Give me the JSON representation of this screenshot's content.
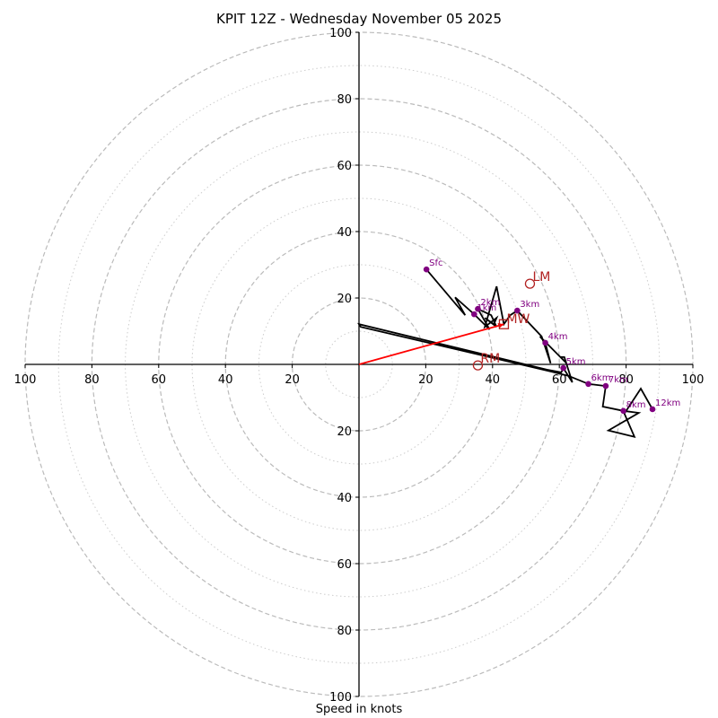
{
  "chart_data": {
    "type": "line",
    "title": "KPIT 12Z - Wednesday November 05 2025",
    "xlabel": "Speed in knots",
    "ylabel": "",
    "units": "knots",
    "xlim": [
      -100,
      100
    ],
    "ylim": [
      -100,
      100
    ],
    "rings": {
      "major": [
        20,
        40,
        60,
        80,
        100
      ],
      "minor": [
        10,
        30,
        50,
        70,
        90
      ],
      "major_style": "dashed",
      "minor_style": "dotted",
      "color": "#bbbbbb"
    },
    "x_ticks": [
      {
        "value": -100,
        "label": "100"
      },
      {
        "value": -80,
        "label": "80"
      },
      {
        "value": -60,
        "label": "60"
      },
      {
        "value": -40,
        "label": "40"
      },
      {
        "value": -20,
        "label": "20"
      },
      {
        "value": 20,
        "label": "20"
      },
      {
        "value": 40,
        "label": "40"
      },
      {
        "value": 60,
        "label": "60"
      },
      {
        "value": 80,
        "label": "80"
      },
      {
        "value": 100,
        "label": "100"
      }
    ],
    "y_ticks": [
      {
        "value": 100,
        "label": "100"
      },
      {
        "value": 80,
        "label": "80"
      },
      {
        "value": 60,
        "label": "60"
      },
      {
        "value": 40,
        "label": "40"
      },
      {
        "value": 20,
        "label": "20"
      },
      {
        "value": -20,
        "label": "20"
      },
      {
        "value": -40,
        "label": "40"
      },
      {
        "value": -60,
        "label": "60"
      },
      {
        "value": -80,
        "label": "80"
      },
      {
        "value": -100,
        "label": "100"
      }
    ],
    "hodograph": {
      "color": "#000000",
      "points": [
        [
          20.2,
          28.6
        ],
        [
          31.8,
          14.8
        ],
        [
          28.8,
          20.2
        ],
        [
          34.5,
          15.1
        ],
        [
          39.1,
          10.5
        ],
        [
          35.6,
          16.7
        ],
        [
          39.6,
          14.8
        ],
        [
          41.2,
          11.3
        ],
        [
          37.7,
          14.0
        ],
        [
          40.4,
          12.1
        ],
        [
          41.2,
          14.0
        ],
        [
          37.7,
          11.3
        ],
        [
          41.2,
          23.5
        ],
        [
          43.4,
          12.1
        ],
        [
          45.3,
          14.8
        ],
        [
          47.4,
          16.2
        ],
        [
          54.7,
          8.4
        ],
        [
          57.4,
          0.3
        ],
        [
          55.8,
          6.5
        ],
        [
          54.2,
          8.4
        ],
        [
          62.0,
          0.5
        ],
        [
          60.4,
          2.2
        ],
        [
          61.5,
          2.2
        ],
        [
          63.9,
          -5.4
        ],
        [
          61.2,
          -1.1
        ],
        [
          60.6,
          -2.4
        ],
        [
          56.3,
          -1.6
        ],
        [
          0.0,
          12.1
        ],
        [
          0.5,
          11.3
        ],
        [
          57.7,
          -2.2
        ],
        [
          62.8,
          -3.5
        ],
        [
          68.7,
          -5.9
        ],
        [
          73.9,
          -6.5
        ],
        [
          73.0,
          -12.7
        ],
        [
          79.2,
          -14.0
        ],
        [
          83.8,
          -14.6
        ],
        [
          74.7,
          -19.9
        ],
        [
          82.5,
          -21.8
        ],
        [
          79.5,
          -14.8
        ],
        [
          84.4,
          -7.3
        ],
        [
          87.9,
          -13.5
        ]
      ],
      "labeled_points": [
        {
          "label": "Sfc",
          "u": 20.2,
          "v": 28.6
        },
        {
          "label": "1km",
          "u": 34.5,
          "v": 15.1
        },
        {
          "label": "2km",
          "u": 35.6,
          "v": 16.7
        },
        {
          "label": "3km",
          "u": 47.4,
          "v": 16.2
        },
        {
          "label": "4km",
          "u": 55.8,
          "v": 6.5
        },
        {
          "label": "5km",
          "u": 61.2,
          "v": -1.1
        },
        {
          "label": "6km",
          "u": 68.7,
          "v": -5.9
        },
        {
          "label": "7km",
          "u": 73.9,
          "v": -6.5
        },
        {
          "label": "8km",
          "u": 79.2,
          "v": -14.0
        },
        {
          "label": "12km",
          "u": 87.9,
          "v": -13.5
        }
      ],
      "marker_color": "#800080"
    },
    "storm_motion": {
      "color": "#b22222",
      "MW": {
        "label": "MW",
        "u": 43.4,
        "v": 12.1,
        "marker": "square"
      },
      "LM": {
        "label": "LM",
        "u": 51.2,
        "v": 24.3,
        "marker": "circle"
      },
      "RM": {
        "label": "RM",
        "u": 35.6,
        "v": -0.3,
        "marker": "circle"
      },
      "vector": {
        "from": [
          0,
          0
        ],
        "to": [
          43.4,
          12.1
        ],
        "color": "#ff0000"
      }
    }
  }
}
